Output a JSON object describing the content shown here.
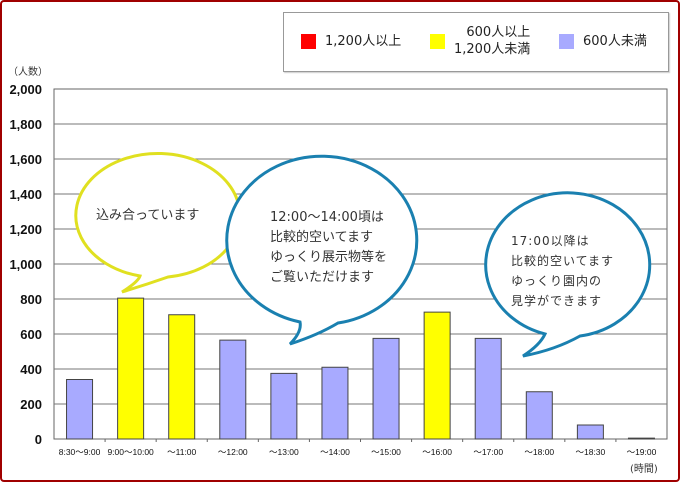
{
  "chart_data": {
    "type": "bar",
    "ylabel": "（人数）",
    "xlabel": "(時間)",
    "ylim": [
      0,
      2000
    ],
    "yticks": [
      "0",
      "200",
      "400",
      "600",
      "800",
      "1,000",
      "1,200",
      "1,400",
      "1,600",
      "1,800",
      "2,000"
    ],
    "grid": true,
    "categories": [
      "8:30～9:00",
      "9:00～10:00",
      "～11:00",
      "～12:00",
      "～13:00",
      "～14:00",
      "～15:00",
      "～16:00",
      "～17:00",
      "～18:00",
      "～18:30",
      "～19:00"
    ],
    "values": [
      340,
      805,
      710,
      565,
      375,
      410,
      575,
      725,
      575,
      270,
      80,
      5
    ],
    "legend_placement": "top-right",
    "legend": [
      {
        "label": "1,200人以上",
        "color": "#ff0000"
      },
      {
        "label_line1": "600人以上",
        "label_line2": "1,200人未満",
        "color": "#ffff00"
      },
      {
        "label": "600人未満",
        "color": "#a8aaff"
      }
    ],
    "thresholds": [
      600,
      1200
    ],
    "annotations": [
      {
        "lines": [
          "込み合っています"
        ],
        "color": "#e0e020"
      },
      {
        "lines": [
          "12:00～14:00頃は",
          "比較的空いてます",
          "ゆっくり展示物等を",
          "ご覧いただけます"
        ],
        "color": "#1a80b0"
      },
      {
        "lines": [
          "17:00以降は",
          "比較的空いてます",
          "ゆっくり園内の",
          "見学ができます"
        ],
        "color": "#1a80b0"
      }
    ]
  }
}
